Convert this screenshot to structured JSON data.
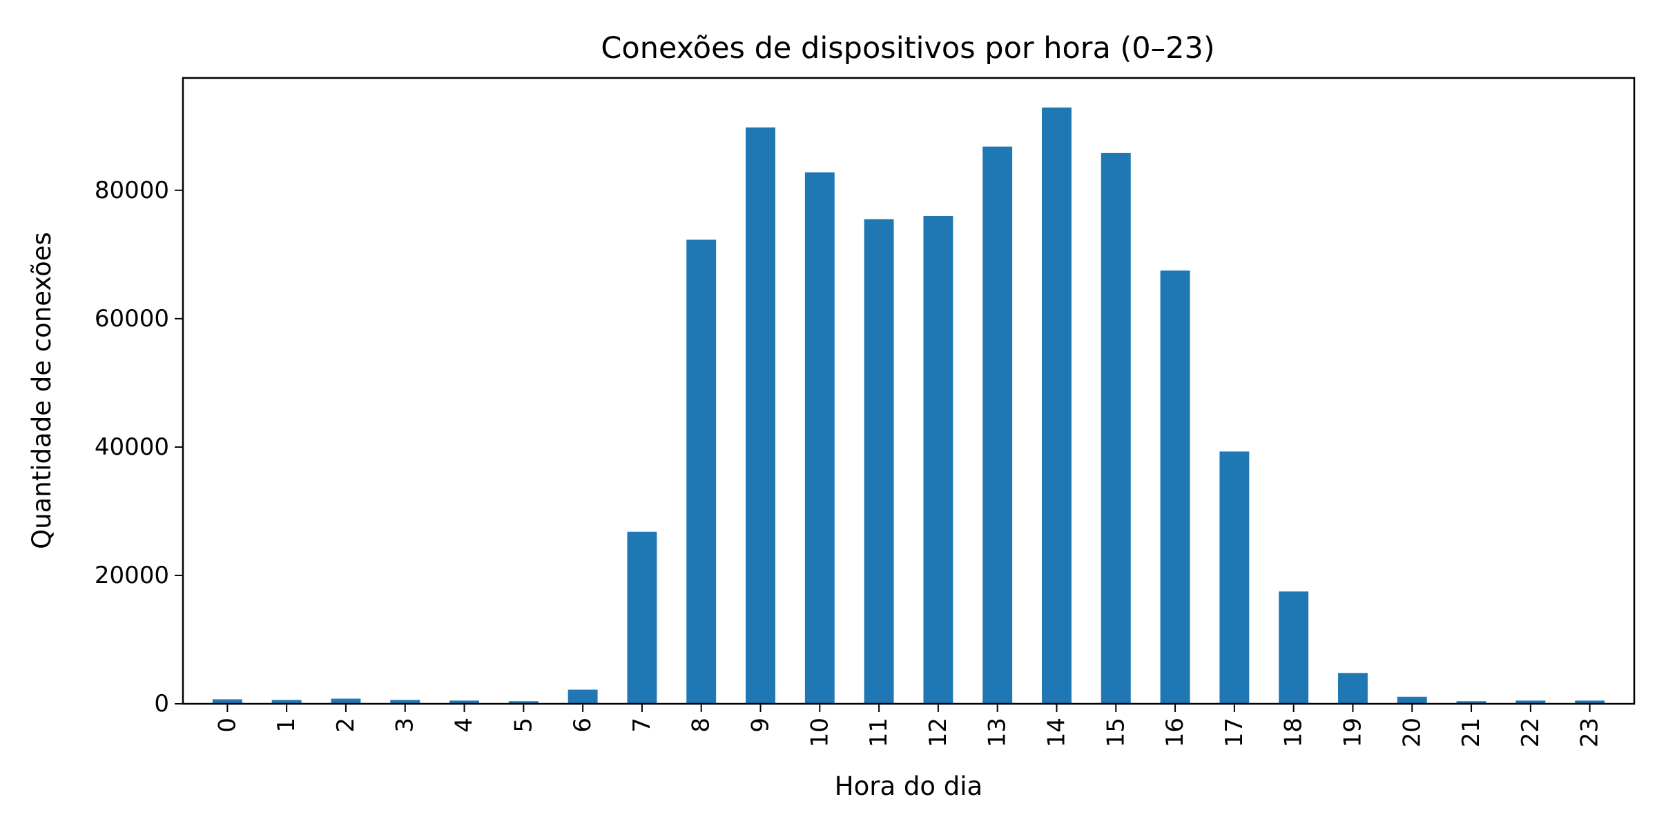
{
  "chart_data": {
    "type": "bar",
    "title": "Conexões de dispositivos por hora (0–23)",
    "xlabel": "Hora do dia",
    "ylabel": "Quantidade de conexões",
    "categories": [
      "0",
      "1",
      "2",
      "3",
      "4",
      "5",
      "6",
      "7",
      "8",
      "9",
      "10",
      "11",
      "12",
      "13",
      "14",
      "15",
      "16",
      "17",
      "18",
      "19",
      "20",
      "21",
      "22",
      "23"
    ],
    "values": [
      700,
      600,
      800,
      600,
      500,
      400,
      2200,
      26800,
      72300,
      89800,
      82800,
      75500,
      76000,
      86800,
      92900,
      85800,
      67500,
      39300,
      17500,
      4800,
      1100,
      400,
      500,
      500
    ],
    "ylim": [
      0,
      97500
    ],
    "yticks": [
      0,
      20000,
      40000,
      60000,
      80000
    ],
    "ytick_labels": [
      "0",
      "20000",
      "40000",
      "60000",
      "80000"
    ],
    "bar_color": "#1f77b4",
    "grid": false,
    "legend": "none"
  }
}
